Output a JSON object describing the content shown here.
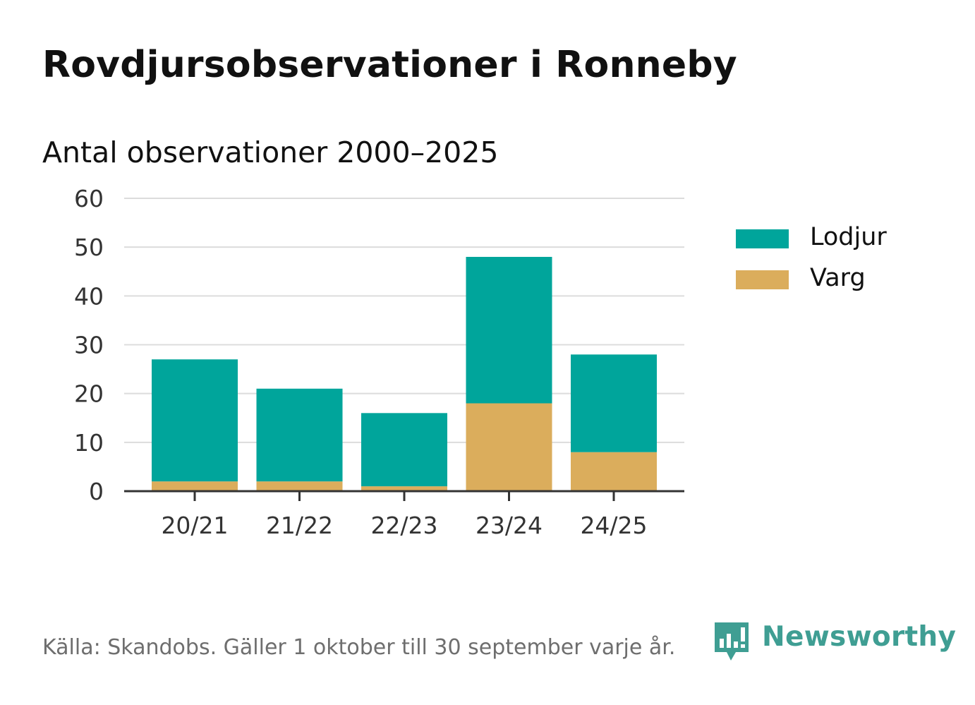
{
  "title": "Rovdjursobservationer i Ronneby",
  "subtitle": "Antal observationer 2000–2025",
  "footer": {
    "source": "Källa: Skandobs. Gäller 1 oktober till 30 september varje år.",
    "brand": "Newsworthy"
  },
  "icons": {
    "brand_logo": "bar-chart-speech-bubble-icon"
  },
  "colors": {
    "lodjur": "#00a59b",
    "varg": "#dbad5c",
    "grid": "#dcdcdc",
    "axis": "#333333",
    "brand": "#3f9e93"
  },
  "chart_data": {
    "type": "bar",
    "stacked": true,
    "title": "Rovdjursobservationer i Ronneby",
    "subtitle": "Antal observationer 2000–2025",
    "xlabel": "",
    "ylabel": "",
    "categories": [
      "20/21",
      "21/22",
      "22/23",
      "23/24",
      "24/25"
    ],
    "series": [
      {
        "name": "Varg",
        "values": [
          2,
          2,
          1,
          18,
          8
        ]
      },
      {
        "name": "Lodjur",
        "values": [
          25,
          19,
          15,
          30,
          20
        ]
      }
    ],
    "legend_order": [
      "Lodjur",
      "Varg"
    ],
    "ylim": [
      0,
      60
    ],
    "yticks": [
      0,
      10,
      20,
      30,
      40,
      50,
      60
    ],
    "ytick_labels": [
      "0",
      "10",
      "20",
      "30",
      "40",
      "50",
      "60"
    ],
    "grid": true,
    "legend_position": "right"
  }
}
